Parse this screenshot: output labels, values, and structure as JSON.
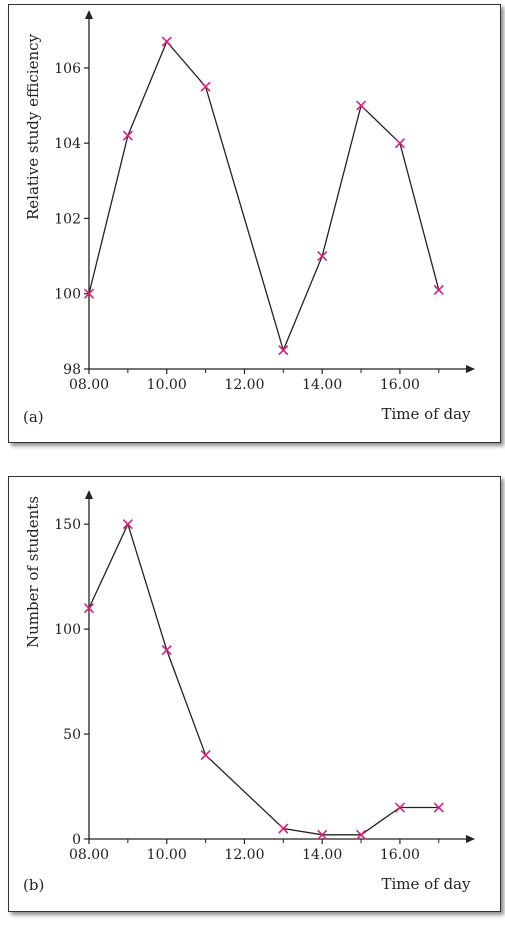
{
  "chart_data": [
    {
      "type": "line",
      "panel_label": "(a)",
      "xlabel": "Time of day",
      "ylabel": "Relative study efficiency",
      "x_ticks": [
        "08.00",
        "10.00",
        "12.00",
        "14.00",
        "16.00"
      ],
      "x_tick_values": [
        8,
        10,
        12,
        14,
        16
      ],
      "y_ticks": [
        "98",
        "100",
        "102",
        "104",
        "106"
      ],
      "y_tick_values": [
        98,
        100,
        102,
        104,
        106
      ],
      "xlim": [
        8,
        17.7
      ],
      "ylim": [
        98,
        107.3
      ],
      "series": [
        {
          "x": [
            8,
            9,
            10,
            11,
            13,
            14,
            15,
            16,
            17
          ],
          "y": [
            100,
            104.2,
            106.7,
            105.5,
            98.5,
            101,
            105,
            104,
            100.1
          ]
        }
      ],
      "line_color": "#222222",
      "marker": "x",
      "marker_color": "#d4237a",
      "grid": false
    },
    {
      "type": "line",
      "panel_label": "(b)",
      "xlabel": "Time of day",
      "ylabel": "Number of students",
      "x_ticks": [
        "08.00",
        "10.00",
        "12.00",
        "14.00",
        "16.00"
      ],
      "x_tick_values": [
        8,
        10,
        12,
        14,
        16
      ],
      "y_ticks": [
        "0",
        "50",
        "100",
        "150"
      ],
      "y_tick_values": [
        0,
        50,
        100,
        150
      ],
      "xlim": [
        8,
        17.7
      ],
      "ylim": [
        0,
        162
      ],
      "series": [
        {
          "x": [
            8,
            9,
            10,
            11,
            13,
            14,
            15,
            16,
            17
          ],
          "y": [
            110,
            150,
            90,
            40,
            5,
            2,
            2,
            15,
            15
          ]
        }
      ],
      "line_color": "#222222",
      "marker": "x",
      "marker_color": "#d4237a",
      "grid": false
    }
  ]
}
